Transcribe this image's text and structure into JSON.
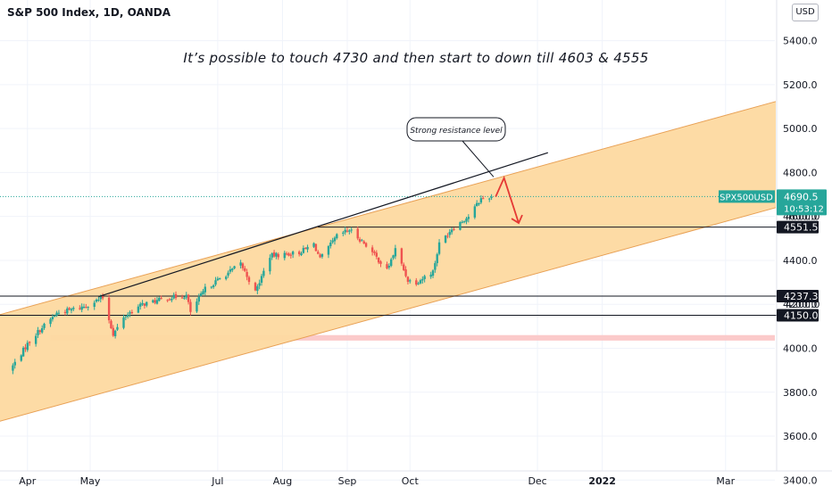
{
  "header": {
    "symbol_title": "S&P 500 Index, 1D, OANDA",
    "currency_button": "USD"
  },
  "annotations": {
    "headline": "It’s possible to touch 4730 and then start to down  till 4603 & 4555",
    "callout": "Strong resistance level"
  },
  "price_tag": {
    "symbol": "SPX500USD",
    "price": "4690.5",
    "countdown": "10:53:12"
  },
  "colors": {
    "up": "#26a69a",
    "down": "#ef5350",
    "channel_fill": "#fdd9a0",
    "channel_edge": "#e8a054",
    "support_zone": "#fbc4c4",
    "arrow": "#e53935",
    "axis_text": "#131722"
  },
  "chart_data": {
    "type": "candlestick",
    "title": "S&P 500 Index, 1D, OANDA",
    "ylim": [
      3385,
      5585
    ],
    "y_ticks": [
      3400,
      3600,
      3800,
      4000,
      4200,
      4400,
      4600,
      4800,
      5000,
      5200,
      5400
    ],
    "y_tick_labels": [
      "3400.0",
      "3600.0",
      "3800.0",
      "4000.0",
      "4200.0",
      "4400.0",
      "4600.0",
      "4800.0",
      "5000.0",
      "5200.0",
      "5400.0"
    ],
    "x_ticks": [
      {
        "label": "Apr",
        "date": "2021-04-01",
        "bold": false
      },
      {
        "label": "May",
        "date": "2021-05-01",
        "bold": false
      },
      {
        "label": "Jul",
        "date": "2021-07-01",
        "bold": false
      },
      {
        "label": "Aug",
        "date": "2021-08-01",
        "bold": false
      },
      {
        "label": "Sep",
        "date": "2021-09-01",
        "bold": false
      },
      {
        "label": "Oct",
        "date": "2021-10-01",
        "bold": false
      },
      {
        "label": "Dec",
        "date": "2021-12-01",
        "bold": false
      },
      {
        "label": "2022",
        "date": "2022-01-01",
        "bold": true
      },
      {
        "label": "Mar",
        "date": "2022-03-01",
        "bold": false
      }
    ],
    "price_levels": [
      {
        "value": 4551.5,
        "label": "4551.5"
      },
      {
        "value": 4237.3,
        "label": "4237.3"
      },
      {
        "value": 4150.0,
        "label": "4150.0"
      }
    ],
    "hidden_level_label": "4200.0",
    "hidden_level_label_2": "4600.0",
    "last_price": 4690.5,
    "channel": {
      "upper": [
        [
          "2021-03-15",
          4143
        ],
        [
          "2022-03-25",
          5123
        ]
      ],
      "lower": [
        [
          "2021-03-15",
          3658
        ],
        [
          "2022-03-25",
          4640
        ]
      ]
    },
    "support_zone": {
      "from": "2021-04-12",
      "to": "2022-03-25",
      "low": 4035,
      "high": 4060
    },
    "resistance_line": [
      [
        "2021-05-05",
        4235
      ],
      [
        "2021-12-06",
        4890
      ]
    ],
    "short_level": {
      "from": "2021-08-18",
      "to": "2022-03-25",
      "value": 4551.5
    },
    "forecast_path": [
      [
        "2021-11-11",
        4690
      ],
      [
        "2021-11-15",
        4775
      ],
      [
        "2021-11-22",
        4570
      ]
    ],
    "callout_pointer": [
      "2021-11-10",
      4780
    ],
    "anchors": [
      [
        "2021-03-25",
        3920
      ],
      [
        "2021-04-01",
        4020
      ],
      [
        "2021-04-06",
        4075
      ],
      [
        "2021-04-15",
        4160
      ],
      [
        "2021-04-28",
        4190
      ],
      [
        "2021-05-07",
        4230
      ],
      [
        "2021-05-12",
        4065
      ],
      [
        "2021-05-18",
        4150
      ],
      [
        "2021-05-26",
        4200
      ],
      [
        "2021-06-08",
        4230
      ],
      [
        "2021-06-16",
        4240
      ],
      [
        "2021-06-18",
        4165
      ],
      [
        "2021-06-25",
        4270
      ],
      [
        "2021-07-07",
        4350
      ],
      [
        "2021-07-12",
        4385
      ],
      [
        "2021-07-19",
        4255
      ],
      [
        "2021-07-26",
        4420
      ],
      [
        "2021-08-09",
        4435
      ],
      [
        "2021-08-16",
        4475
      ],
      [
        "2021-08-19",
        4405
      ],
      [
        "2021-08-27",
        4510
      ],
      [
        "2021-09-02",
        4540
      ],
      [
        "2021-09-10",
        4470
      ],
      [
        "2021-09-20",
        4355
      ],
      [
        "2021-09-24",
        4450
      ],
      [
        "2021-09-30",
        4310
      ],
      [
        "2021-10-04",
        4300
      ],
      [
        "2021-10-12",
        4350
      ],
      [
        "2021-10-15",
        4475
      ],
      [
        "2021-10-21",
        4545
      ],
      [
        "2021-10-29",
        4600
      ],
      [
        "2021-11-04",
        4680
      ],
      [
        "2021-11-09",
        4690
      ]
    ]
  }
}
